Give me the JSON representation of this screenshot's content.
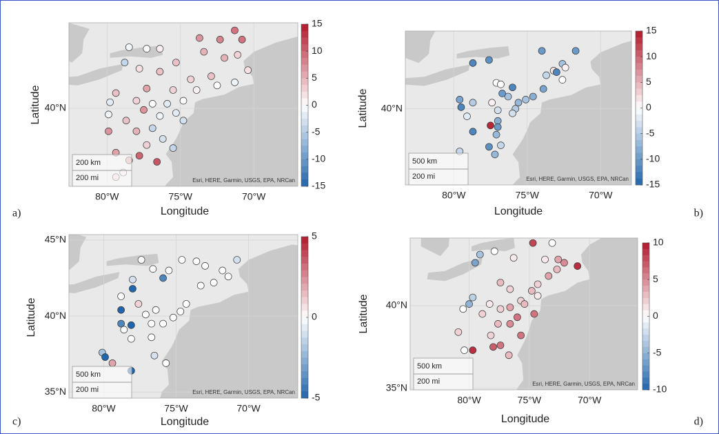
{
  "chart_data": [
    {
      "type": "scatter",
      "panel_label": "a)",
      "xlabel": "Longitude",
      "ylabel": "Latitude",
      "xlim": [
        -82.6,
        -67.0
      ],
      "ylim": [
        34.9,
        45.6
      ],
      "xticks": [
        {
          "value": -80,
          "label": "80°W"
        },
        {
          "value": -75,
          "label": "75°W"
        },
        {
          "value": -70,
          "label": "70°W"
        }
      ],
      "yticks": [
        {
          "value": 40,
          "label": "40°N"
        }
      ],
      "clim": [
        -15,
        15
      ],
      "cticks": [
        15,
        10,
        5,
        0,
        -5,
        -10,
        -15
      ],
      "colors": [
        "#2166ac",
        "#ffffff",
        "#b2182b"
      ],
      "scale_labels": [
        "200 km",
        "200 mi"
      ],
      "attribution": "Esri, HERE, Garmin, USGS, EPA, NRCan",
      "x": [
        -73.7,
        -72.3,
        -71.3,
        -70.8,
        -73.4,
        -72,
        -71.1,
        -70.4,
        -72.9,
        -74.3,
        -75.3,
        -76.4,
        -77.3,
        -78.5,
        -78.8,
        -77.8,
        -76.4,
        -75.5,
        -73.9,
        -72.5,
        -71.3,
        -74.8,
        -75.9,
        -76.9,
        -78,
        -79.4,
        -79.8,
        -79.9,
        -78.7,
        -77.5,
        -76.4,
        -75.3,
        -74.8,
        -76.9,
        -78,
        -76.2,
        -77.3,
        -75.5,
        -77.8,
        -79.4,
        -78.5,
        -76.6,
        -79.4,
        -78.9,
        -79.9,
        -77.3
      ],
      "y": [
        44.6,
        44.5,
        45.1,
        44.5,
        43.7,
        43.3,
        43.5,
        42.5,
        42.1,
        41.9,
        43,
        43.9,
        43.9,
        44,
        43,
        42.6,
        42.4,
        41.2,
        41.2,
        41.5,
        41.7,
        40.5,
        40.3,
        40.3,
        40.5,
        41,
        40.4,
        39.6,
        39.2,
        39.9,
        39.5,
        39.7,
        39.2,
        38.7,
        38.5,
        38,
        37.6,
        37.4,
        36.9,
        37.1,
        36.6,
        36.5,
        35.5,
        35.8,
        38.5,
        41.3
      ],
      "values": [
        7,
        8,
        9,
        9,
        5,
        5,
        3,
        2,
        4,
        3,
        4,
        1,
        0,
        -1,
        -4,
        2,
        4,
        3,
        1,
        0,
        -1,
        0,
        -2,
        0,
        3,
        4,
        -2,
        -1,
        4,
        7,
        -1,
        -2,
        -3,
        -4,
        5,
        -3,
        3,
        -4,
        10,
        6,
        6,
        11,
        3,
        2,
        7,
        6
      ]
    },
    {
      "type": "scatter",
      "panel_label": "b)",
      "xlabel": "Longitude",
      "ylabel": "Latitude",
      "xlim": [
        -83.3,
        -67.9
      ],
      "ylim": [
        35.0,
        45.1
      ],
      "xticks": [
        {
          "value": -80,
          "label": "80°W"
        },
        {
          "value": -75,
          "label": "75°W"
        },
        {
          "value": -70,
          "label": "70°W"
        }
      ],
      "yticks": [
        {
          "value": 40,
          "label": "40°N"
        }
      ],
      "clim": [
        -15,
        15
      ],
      "cticks": [
        15,
        10,
        5,
        0,
        -5,
        -10,
        -15
      ],
      "colors": [
        "#2166ac",
        "#ffffff",
        "#b2182b"
      ],
      "scale_labels": [
        "500 km",
        "200 mi"
      ],
      "attribution": "Esri, HERE, Garmin, USGS, EPA, NRCan",
      "x": [
        -78.7,
        -77.6,
        -74,
        -71.7,
        -72.6,
        -73.2,
        -73.7,
        -73,
        -72.4,
        -72.6,
        -76,
        -77.1,
        -76.8,
        -73.9,
        -74.6,
        -75.1,
        -75.6,
        -75.8,
        -76,
        -77,
        -77.4,
        -78.7,
        -79.6,
        -79.5,
        -79.1,
        -77,
        -77.5,
        -77,
        -77.1,
        -78.7,
        -77.6,
        -77.2,
        -76.8,
        -79.6,
        -76.3,
        -76.7
      ],
      "y": [
        43,
        43.2,
        43.8,
        43.8,
        42.95,
        42.5,
        42.2,
        42.4,
        42.7,
        41.9,
        41.4,
        41.7,
        41.6,
        41.3,
        40.8,
        40.6,
        40.4,
        40,
        39.7,
        39.9,
        40.4,
        40.4,
        40.6,
        40.1,
        39.5,
        39.2,
        38.9,
        38.8,
        38.3,
        38.5,
        37.5,
        37,
        37.6,
        37.2,
        40.8,
        41
      ],
      "values": [
        -12,
        -11,
        -10,
        -10,
        -6,
        2,
        -4,
        -12,
        1,
        0,
        -12,
        0,
        0,
        -9,
        -8,
        -6,
        -7,
        -5,
        -3,
        -3,
        1,
        -5,
        -9,
        -12,
        -2,
        -8,
        14,
        -10,
        -7,
        -12,
        -11,
        -7,
        -4,
        -4,
        -6,
        -10
      ]
    },
    {
      "type": "scatter",
      "panel_label": "c)",
      "xlabel": "Longitude",
      "ylabel": "Latitude",
      "xlim": [
        -82.4,
        -66.6
      ],
      "ylim": [
        34.6,
        45.36
      ],
      "xticks": [
        {
          "value": -80,
          "label": "80°W"
        },
        {
          "value": -75,
          "label": "75°W"
        },
        {
          "value": -70,
          "label": "70°W"
        }
      ],
      "yticks": [
        {
          "value": 45,
          "label": "45°N"
        },
        {
          "value": 40,
          "label": "40°N"
        },
        {
          "value": 35,
          "label": "35°N"
        }
      ],
      "clim": [
        -5,
        5
      ],
      "cticks": [
        5,
        0,
        -5
      ],
      "colors": [
        "#2166ac",
        "#ffffff",
        "#b2182b"
      ],
      "scale_labels": [
        "500 km",
        "200 mi"
      ],
      "attribution": "Esri, HERE, Garmin, USGS, EPA, NRCan",
      "x": [
        -77.4,
        -76.6,
        -75.9,
        -75.5,
        -74.6,
        -73.6,
        -73,
        -71.8,
        -70.8,
        -71.4,
        -72.4,
        -73.3,
        -74.3,
        -74.7,
        -75.2,
        -75.9,
        -76.7,
        -77.1,
        -78,
        -78,
        -78.8,
        -78.8,
        -78.8,
        -78.1,
        -78.6,
        -78.1,
        -76.7,
        -76.5,
        -75.7,
        -79.4,
        -80.1,
        -79.9,
        -78.1,
        -76.4,
        -77.6
      ],
      "y": [
        43.7,
        43.1,
        42.5,
        43,
        43.7,
        43.6,
        43.3,
        43,
        43.7,
        42.6,
        42.2,
        42,
        40.8,
        40.3,
        39.9,
        39.5,
        39.5,
        40.1,
        42.4,
        41.8,
        41.3,
        40.4,
        39.5,
        39.4,
        39.1,
        38.5,
        38.6,
        37.4,
        36.9,
        36.9,
        37.6,
        37.3,
        36.4,
        40.4,
        40.8
      ],
      "values": [
        0,
        0,
        -4,
        0,
        0,
        0,
        0,
        0,
        -1,
        0,
        0,
        0,
        0,
        0,
        0,
        0,
        0,
        0,
        -1,
        -9,
        0,
        -6,
        -4,
        -6,
        0,
        0,
        0,
        -1,
        0,
        2,
        -2,
        -7,
        -5,
        0,
        1
      ]
    },
    {
      "type": "scatter",
      "panel_label": "d)",
      "xlabel": "Longitude",
      "ylabel": "Latitude",
      "xlim": [
        -84.9,
        -66.0
      ],
      "ylim": [
        34.9,
        44.1
      ],
      "xticks": [
        {
          "value": -80,
          "label": "80°W"
        },
        {
          "value": -75,
          "label": "75°W"
        },
        {
          "value": -70,
          "label": "70°W"
        }
      ],
      "yticks": [
        {
          "value": 40,
          "label": "40°N"
        },
        {
          "value": 35,
          "label": "35°N"
        }
      ],
      "clim": [
        -10,
        10
      ],
      "cticks": [
        10,
        5,
        0,
        -5,
        -10
      ],
      "colors": [
        "#2166ac",
        "#ffffff",
        "#b2182b"
      ],
      "scale_labels": [
        "500 km",
        "200 mi"
      ],
      "attribution": "Esri, HERE, Garmin, USGS, EPA, NRCan",
      "x": [
        -79.5,
        -79.1,
        -77.9,
        -76.3,
        -74.7,
        -73.7,
        -73.1,
        -72.6,
        -72.1,
        -71,
        -72.7,
        -73.4,
        -74.3,
        -74.8,
        -75.7,
        -76.6,
        -77.4,
        -78.3,
        -77.6,
        -76.6,
        -76,
        -74.6,
        -75.4,
        -78.9,
        -80,
        -79.7,
        -80.5,
        -78.2,
        -78,
        -77.4,
        -75.7,
        -76.7,
        -79.7,
        -80.4,
        -80.9,
        -76.6,
        -77.4,
        -74.3
      ],
      "y": [
        42.6,
        43.1,
        43.3,
        42.9,
        43.8,
        42.8,
        43.8,
        42.8,
        42.6,
        42.4,
        42.2,
        41.8,
        41.3,
        40.9,
        40.3,
        39.9,
        39.8,
        40.1,
        38.9,
        38.9,
        39.3,
        39.5,
        40.1,
        39.5,
        40.1,
        40.5,
        39.8,
        38.2,
        37.5,
        37.6,
        38.2,
        37,
        37.3,
        37.3,
        38.4,
        41,
        41.4,
        40.6
      ],
      "values": [
        -6,
        -4,
        0,
        1,
        8,
        1,
        0,
        4,
        5,
        9,
        3,
        4,
        2,
        3,
        2,
        4,
        2,
        1,
        3,
        5,
        6,
        6,
        3,
        2,
        -5,
        -3,
        0,
        2,
        7,
        6,
        6,
        3,
        9,
        0,
        2,
        2,
        3,
        1
      ]
    }
  ]
}
